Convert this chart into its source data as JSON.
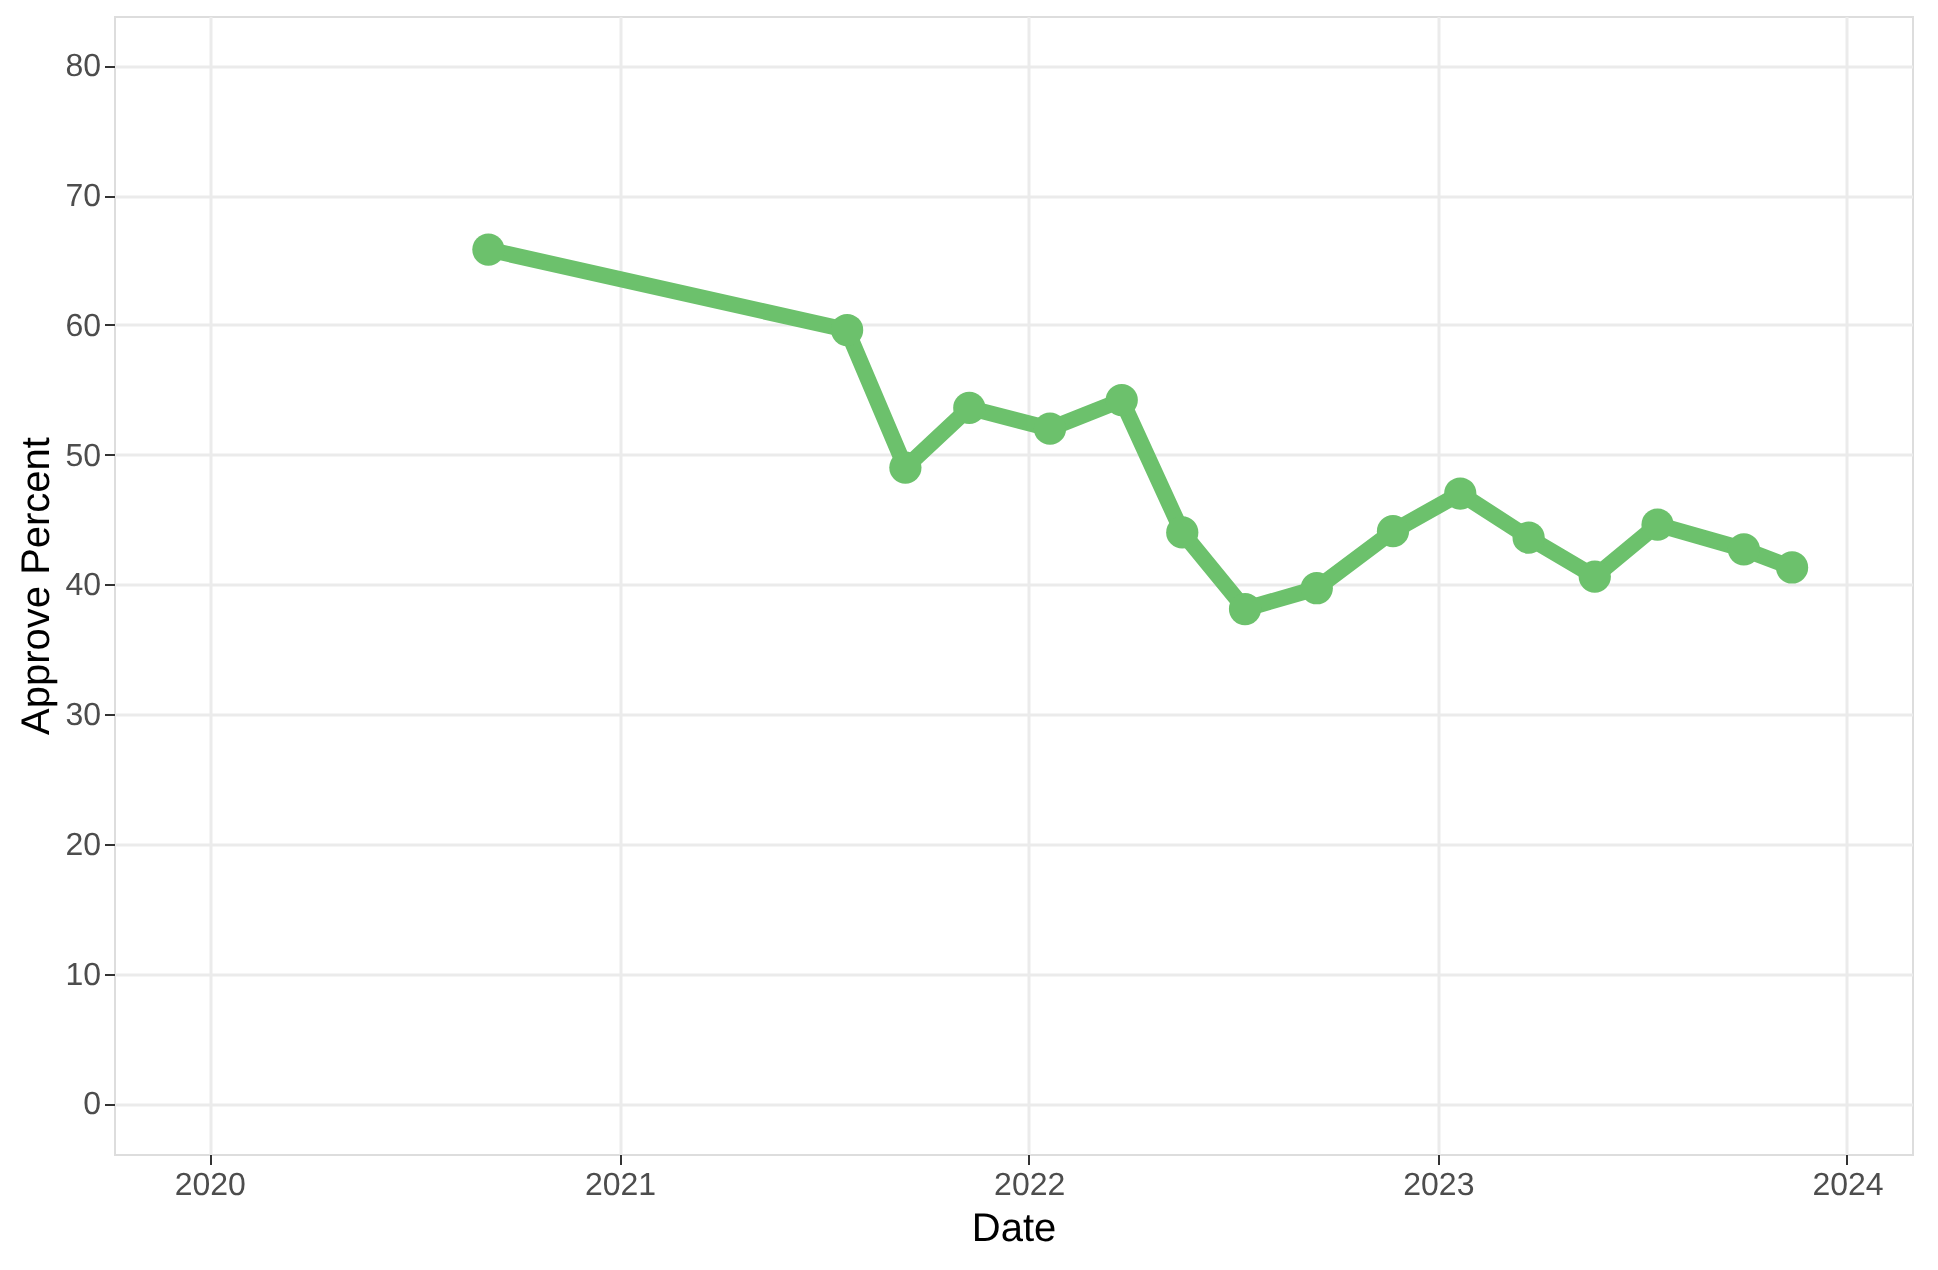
{
  "chart_data": {
    "type": "line",
    "xlabel": "Date",
    "ylabel": "Approve Percent",
    "x": [
      "2020-09-06",
      "2021-07-23",
      "2021-09-13",
      "2021-11-09",
      "2022-01-20",
      "2022-03-25",
      "2022-05-18",
      "2022-07-13",
      "2022-09-15",
      "2022-11-22",
      "2023-01-21",
      "2023-03-23",
      "2023-05-21",
      "2023-07-16",
      "2023-10-01",
      "2023-11-13"
    ],
    "series": [
      {
        "color": "#6cc16c",
        "values": [
          65.8,
          59.6,
          49.0,
          53.6,
          52.0,
          54.2,
          44.0,
          38.1,
          39.7,
          44.1,
          47.0,
          43.6,
          40.6,
          44.6,
          42.7,
          41.3
        ]
      }
    ],
    "xlim": [
      "2019-10-08",
      "2024-02-28"
    ],
    "xticks": [
      {
        "value": "2020-01-01",
        "label": "2020"
      },
      {
        "value": "2021-01-01",
        "label": "2021"
      },
      {
        "value": "2022-01-01",
        "label": "2022"
      },
      {
        "value": "2023-01-01",
        "label": "2023"
      },
      {
        "value": "2024-01-01",
        "label": "2024"
      }
    ],
    "ylim": [
      -3.9,
      83.8
    ],
    "yticks": [
      0,
      10,
      20,
      30,
      40,
      50,
      60,
      70,
      80
    ],
    "grid": true,
    "marker": "circle",
    "line_style": "solid"
  }
}
